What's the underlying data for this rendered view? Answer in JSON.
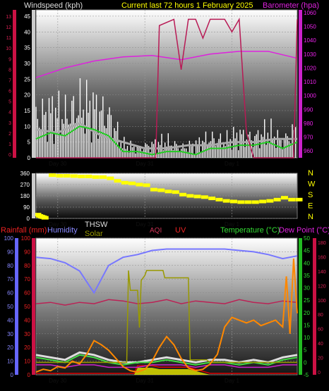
{
  "chart_data": [
    {
      "type": "line",
      "panel": "wind-barometer",
      "title": "Current last 72 hours 1 February 2025",
      "left_axis_label": "Windspeed (kph)",
      "right_axis_label": "Barometer (hpa)",
      "x_day_labels": [
        "Day 30",
        "Day 31",
        "Day 1"
      ],
      "wind_ticks": [
        "45",
        "40",
        "35",
        "30",
        "25",
        "20",
        "15",
        "10",
        "5",
        "0"
      ],
      "wind_ticks_alt": [
        "13",
        "12",
        "11",
        "10",
        "9",
        "8",
        "7",
        "6",
        "5",
        "4",
        "3",
        "2",
        "1",
        "0"
      ],
      "baro_ticks": [
        "1060",
        "1050",
        "1040",
        "1030",
        "1020",
        "1010",
        "1000",
        "990",
        "980",
        "970",
        "960"
      ],
      "ylim_wind": [
        0,
        47
      ],
      "ylim_baro": [
        955,
        1062
      ],
      "series": [
        {
          "name": "Barometer",
          "color": "#dd22dd",
          "x": [
            0,
            8,
            16,
            24,
            32,
            40,
            48,
            56,
            64,
            72
          ],
          "values": [
            1013,
            1020,
            1025,
            1028,
            1029,
            1026,
            1030,
            1032,
            1032,
            1027
          ]
        },
        {
          "name": "Gust",
          "color": "#ffffff",
          "x": [
            0,
            4,
            8,
            12,
            16,
            20,
            24,
            28,
            32,
            36,
            40,
            44,
            48,
            52,
            56,
            60,
            64,
            68,
            72
          ],
          "values": [
            12,
            14,
            13,
            16,
            15,
            13,
            4,
            3,
            4,
            5,
            3,
            4,
            6,
            5,
            7,
            6,
            8,
            5,
            9
          ]
        },
        {
          "name": "Wind average",
          "color": "#aaaaaa",
          "x": [
            0,
            6,
            12,
            18,
            24,
            30,
            36,
            42,
            48,
            54,
            60,
            66,
            72
          ],
          "values": [
            9,
            8,
            11,
            7,
            5,
            3,
            3,
            4,
            4,
            5,
            5,
            6,
            6
          ]
        },
        {
          "name": "Wind speed",
          "color": "#22cc22",
          "x": [
            0,
            4,
            8,
            12,
            16,
            20,
            24,
            28,
            32,
            36,
            40,
            44,
            48,
            52,
            56,
            60,
            64,
            68,
            72
          ],
          "values": [
            6,
            8,
            7,
            10,
            9,
            7,
            2,
            2,
            1,
            2,
            2,
            1,
            3,
            3,
            4,
            4,
            5,
            3,
            5
          ]
        },
        {
          "name": "Rain rate",
          "color": "#b81a55",
          "x": [
            0,
            33,
            34,
            38,
            40,
            42,
            44,
            46,
            48,
            52,
            54,
            56,
            58,
            60,
            62,
            71,
            72
          ],
          "values": [
            0,
            0,
            42,
            44,
            28,
            44,
            44,
            38,
            44,
            44,
            40,
            44,
            8,
            0,
            0,
            0,
            44
          ]
        }
      ]
    },
    {
      "type": "scatter",
      "panel": "wind-direction",
      "yticks": [
        "360",
        "270",
        "180",
        "90",
        "0"
      ],
      "compass_labels": [
        "N",
        "W",
        "S",
        "E",
        "N"
      ],
      "x_day_labels": [
        "Day 30",
        "Day 31",
        "Day 1"
      ],
      "ylim": [
        0,
        360
      ],
      "series": [
        {
          "name": "Wind direction",
          "color": "#ffff00",
          "x": [
            0,
            0.5,
            1,
            1.5,
            2,
            4,
            6,
            8,
            10,
            12,
            14,
            16,
            18,
            20,
            22,
            24,
            26,
            28,
            30,
            32,
            34,
            36,
            38,
            40,
            42,
            44,
            46,
            48,
            50,
            52,
            54,
            56,
            58,
            60,
            62,
            64,
            66,
            68,
            70,
            72
          ],
          "values": [
            30,
            20,
            15,
            10,
            5,
            345,
            340,
            340,
            338,
            335,
            335,
            330,
            330,
            320,
            300,
            285,
            280,
            270,
            265,
            230,
            225,
            215,
            210,
            190,
            180,
            175,
            170,
            160,
            150,
            140,
            135,
            130,
            130,
            130,
            135,
            140,
            150,
            165,
            150,
            150
          ]
        }
      ]
    },
    {
      "type": "line",
      "panel": "temperature-humidity-solar",
      "legend": {
        "rainfall": "Rainfall (mm)",
        "humidity": "Humidity",
        "thsw": "THSW",
        "solar": "Solar",
        "aqi": "AQI",
        "uv": "UV",
        "temperature": "Temperature (°C)",
        "dewpoint": "Dew Point (°C)"
      },
      "x_day_labels": [
        "Day 30",
        "Day 31",
        "Day 1"
      ],
      "humidity_ticks": [
        "100",
        "90",
        "80",
        "70",
        "60",
        "50",
        "40",
        "30",
        "20",
        "10",
        "0"
      ],
      "rain_ticks": [
        "100",
        "90",
        "80",
        "70",
        "60",
        "50",
        "40",
        "30",
        "20",
        "10",
        "0"
      ],
      "temp_ticks": [
        "50",
        "45",
        "40",
        "35",
        "30",
        "25",
        "20",
        "15",
        "10",
        "5",
        "0",
        "-5"
      ],
      "aqi_ticks": [
        "180",
        "160",
        "140",
        "120",
        "100",
        "80",
        "60",
        "40",
        "20",
        "0"
      ],
      "ylim_humidity": [
        0,
        100
      ],
      "ylim_temp": [
        -5,
        50
      ],
      "series": [
        {
          "name": "Humidity",
          "color": "#7777ff",
          "x": [
            0,
            4,
            8,
            12,
            14,
            16,
            18,
            20,
            24,
            28,
            32,
            36,
            40,
            44,
            48,
            52,
            56,
            60,
            64,
            68,
            72
          ],
          "values": [
            86,
            85,
            82,
            76,
            68,
            60,
            70,
            80,
            86,
            88,
            91,
            92,
            92,
            92,
            92,
            92,
            91,
            90,
            88,
            85,
            87
          ]
        },
        {
          "name": "AQI",
          "color": "#bb2255",
          "x": [
            0,
            4,
            8,
            12,
            16,
            20,
            24,
            28,
            32,
            36,
            40,
            44,
            48,
            52,
            56,
            60,
            64,
            68,
            72
          ],
          "values": [
            52,
            53,
            51,
            53,
            52,
            55,
            54,
            52,
            53,
            55,
            52,
            54,
            53,
            52,
            55,
            53,
            52,
            54,
            53
          ]
        },
        {
          "name": "THSW",
          "color": "#dddddd",
          "x": [
            0,
            4,
            8,
            12,
            16,
            20,
            24,
            28,
            32,
            36,
            40,
            44,
            48,
            52,
            56,
            60,
            64,
            68,
            72
          ],
          "values": [
            3,
            2,
            1,
            4,
            3,
            1,
            0,
            0,
            1,
            2,
            1,
            0,
            1,
            1,
            0,
            1,
            0,
            2,
            3
          ]
        },
        {
          "name": "Temperature",
          "color": "#44dd44",
          "x": [
            0,
            4,
            8,
            12,
            16,
            20,
            24,
            28,
            32,
            36,
            40,
            44,
            48,
            52,
            56,
            60,
            64,
            68,
            72
          ],
          "values": [
            2,
            1,
            0,
            3,
            2,
            0,
            -1,
            0,
            0,
            1,
            0,
            -1,
            0,
            0,
            -1,
            0,
            -1,
            1,
            2
          ]
        },
        {
          "name": "Dew Point",
          "color": "#cc22cc",
          "x": [
            0,
            4,
            8,
            12,
            16,
            20,
            24,
            28,
            32,
            36,
            40,
            44,
            48,
            52,
            56,
            60,
            64,
            68,
            72
          ],
          "values": [
            -1,
            -1,
            -2,
            -1,
            -1,
            -2,
            -2,
            -2,
            -1,
            -1,
            -1,
            -2,
            -1,
            -1,
            -2,
            -2,
            -2,
            -1,
            -1
          ]
        },
        {
          "name": "Solar",
          "color": "#999900",
          "x": [
            0,
            25,
            25.5,
            26,
            28,
            28.5,
            29,
            30,
            30.5,
            35,
            35.5,
            37,
            42,
            42.5,
            47,
            48,
            72
          ],
          "values": [
            0,
            0,
            37,
            29,
            29,
            14,
            33,
            35,
            37,
            37,
            34,
            34,
            34,
            1,
            1,
            0,
            0
          ]
        },
        {
          "name": "UV",
          "color": "#dd0000",
          "x": [
            0,
            27,
            28,
            32,
            34,
            42,
            48,
            72
          ],
          "values": [
            0,
            0,
            5,
            5,
            4,
            4,
            0,
            0
          ]
        },
        {
          "name": "Rainfall",
          "color": "#ff8800",
          "x": [
            0,
            2,
            4,
            6,
            8,
            10,
            12,
            14,
            16,
            18,
            20,
            22,
            24,
            26,
            28,
            30,
            32,
            34,
            36,
            38,
            40,
            42,
            44,
            46,
            48,
            50,
            52,
            54,
            56,
            58,
            60,
            62,
            64,
            66,
            68,
            69,
            70,
            71,
            72
          ],
          "values": [
            2,
            4,
            3,
            6,
            5,
            10,
            8,
            15,
            25,
            22,
            18,
            12,
            6,
            3,
            2,
            4,
            10,
            20,
            28,
            22,
            12,
            5,
            3,
            4,
            8,
            15,
            35,
            42,
            40,
            38,
            40,
            36,
            38,
            40,
            35,
            72,
            30,
            85,
            45
          ]
        }
      ]
    }
  ]
}
